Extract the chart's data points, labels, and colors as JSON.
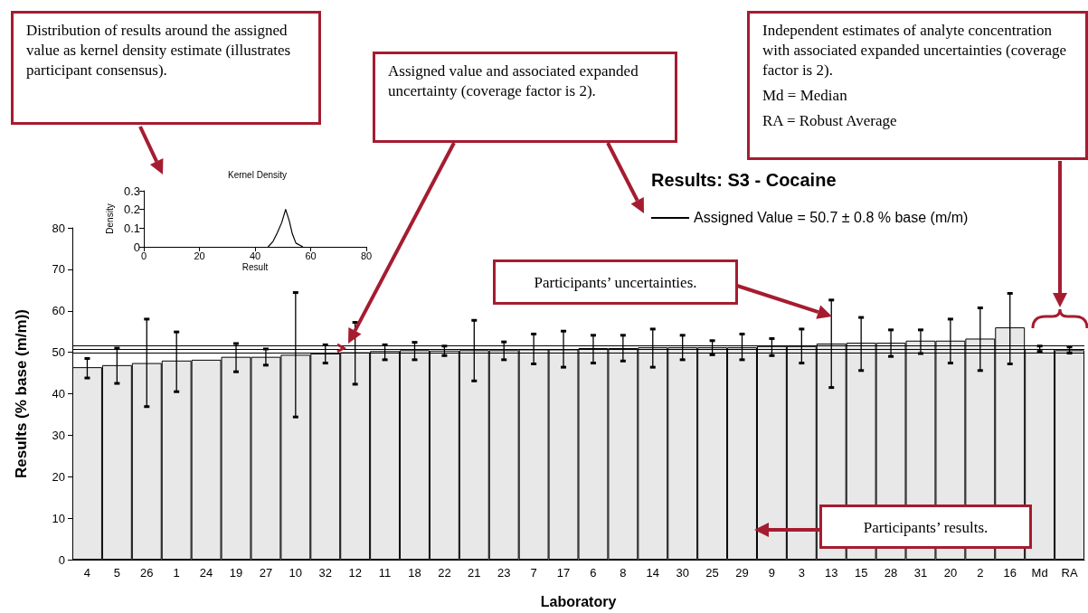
{
  "chart_data": [
    {
      "type": "bar",
      "title": "Results: S3 - Cocaine",
      "xlabel": "Laboratory",
      "ylabel": "Results (% base (m/m))",
      "categories": [
        "4",
        "5",
        "26",
        "1",
        "24",
        "19",
        "27",
        "10",
        "32",
        "12",
        "11",
        "18",
        "22",
        "21",
        "23",
        "7",
        "17",
        "6",
        "8",
        "14",
        "30",
        "25",
        "29",
        "9",
        "3",
        "13",
        "15",
        "28",
        "31",
        "20",
        "2",
        "16",
        "Md",
        "RA"
      ],
      "values": [
        46.4,
        46.9,
        47.4,
        48.0,
        48.2,
        48.9,
        48.9,
        49.4,
        49.7,
        50.0,
        50.3,
        50.5,
        50.4,
        50.5,
        50.5,
        50.7,
        50.7,
        51.0,
        51.0,
        51.2,
        51.2,
        51.2,
        51.2,
        51.5,
        51.5,
        52.1,
        52.3,
        52.3,
        52.8,
        52.8,
        53.3,
        56.0,
        50.8,
        50.5
      ],
      "errors": [
        [
          43.8,
          48.5
        ],
        [
          42.5,
          51.0
        ],
        [
          36.9,
          58.0
        ],
        [
          40.5,
          54.9
        ],
        null,
        [
          45.3,
          52.1
        ],
        [
          46.9,
          50.8
        ],
        [
          34.4,
          64.4
        ],
        [
          47.4,
          51.8
        ],
        [
          42.3,
          57.2
        ],
        [
          48.2,
          51.8
        ],
        [
          48.2,
          52.4
        ],
        [
          49.2,
          51.5
        ],
        [
          43.1,
          57.7
        ],
        [
          48.2,
          52.5
        ],
        [
          47.2,
          54.4
        ],
        [
          46.4,
          55.1
        ],
        [
          47.4,
          54.1
        ],
        [
          47.9,
          54.1
        ],
        [
          46.4,
          55.6
        ],
        [
          48.2,
          54.1
        ],
        [
          49.4,
          52.8
        ],
        [
          48.2,
          54.4
        ],
        [
          49.2,
          53.3
        ],
        [
          47.4,
          55.6
        ],
        [
          41.5,
          62.6
        ],
        [
          45.6,
          58.4
        ],
        [
          49.0,
          55.4
        ],
        [
          49.7,
          55.4
        ],
        [
          47.4,
          58.0
        ],
        [
          45.6,
          60.7
        ],
        [
          47.2,
          64.2
        ],
        [
          50.2,
          51.5
        ],
        [
          49.8,
          51.3
        ]
      ],
      "color": "#e8e8e8",
      "ylim": [
        0,
        80
      ],
      "yticks": [
        0,
        10,
        20,
        30,
        40,
        50,
        60,
        70,
        80
      ],
      "ref_lines": [
        {
          "axis": "y",
          "value": 50.7,
          "label": "Assigned Value = 50.7 ± 0.8 % base (m/m)"
        },
        {
          "axis": "y",
          "value": 49.9,
          "label": null
        },
        {
          "axis": "y",
          "value": 51.5,
          "label": null
        }
      ],
      "annotations": [
        "Distribution of results around the assigned value as kernel density estimate (illustrates participant consensus).",
        "Assigned value and associated expanded uncertainty (coverage factor is 2).",
        "Independent estimates of analyte concentration with associated expanded uncertainties (coverage factor is 2).",
        "Md = Median",
        "RA = Robust Average",
        "Participants’ uncertainties.",
        "Participants’ results."
      ]
    },
    {
      "type": "line",
      "title": "Kernel Density",
      "xlabel": "Result",
      "ylabel": "Density",
      "x": [
        44.7,
        46.5,
        48.0,
        49.6,
        51.0,
        52.3,
        53.4,
        54.7,
        57.2
      ],
      "values": [
        0,
        0.03,
        0.075,
        0.13,
        0.2,
        0.14,
        0.07,
        0.02,
        0
      ],
      "color": "#000000",
      "marker": "none",
      "xlim": [
        0,
        80
      ],
      "xticks": [
        0,
        20,
        40,
        60,
        80
      ],
      "ylim": [
        0,
        0.3
      ],
      "yticks": [
        0,
        0.1,
        0.2,
        0.3
      ]
    }
  ]
}
